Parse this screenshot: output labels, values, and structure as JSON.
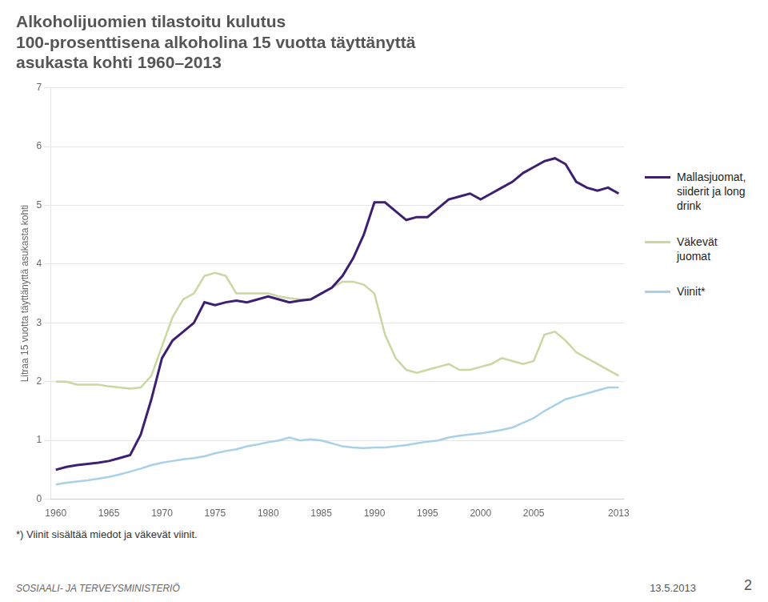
{
  "chart_data": {
    "type": "line",
    "title": "Alkoholijuomien tilastoitu kulutus\n100-prosenttisena alkoholina 15 vuotta täyttänyttä\nasukasta kohti 1960–2013",
    "ylabel": "Litraa 15 vuotta täyttänyttä asukasta kohti",
    "annotations": [
      "*) Viinit sisältää miedot ja väkevät viinit.",
      "SOSIAALI- JA TERVEYSMINISTERIÖ",
      "13.5.2013",
      "2"
    ],
    "x": [
      1960,
      1961,
      1962,
      1963,
      1964,
      1965,
      1966,
      1967,
      1968,
      1969,
      1970,
      1971,
      1972,
      1973,
      1974,
      1975,
      1976,
      1977,
      1978,
      1979,
      1980,
      1981,
      1982,
      1983,
      1984,
      1985,
      1986,
      1987,
      1988,
      1989,
      1990,
      1991,
      1992,
      1993,
      1994,
      1995,
      1996,
      1997,
      1998,
      1999,
      2000,
      2001,
      2002,
      2003,
      2004,
      2005,
      2006,
      2007,
      2008,
      2009,
      2010,
      2011,
      2012,
      2013
    ],
    "series": [
      {
        "name": "Mallasjuomat,\nsiiderit ja long\ndrink",
        "color": "#3d2070",
        "values": [
          0.5,
          0.55,
          0.58,
          0.6,
          0.62,
          0.65,
          0.7,
          0.75,
          1.1,
          1.7,
          2.4,
          2.7,
          2.85,
          3.0,
          3.35,
          3.3,
          3.35,
          3.38,
          3.35,
          3.4,
          3.45,
          3.4,
          3.35,
          3.38,
          3.4,
          3.5,
          3.6,
          3.8,
          4.1,
          4.5,
          5.05,
          5.05,
          4.9,
          4.75,
          4.8,
          4.8,
          4.95,
          5.1,
          5.15,
          5.2,
          5.1,
          5.2,
          5.3,
          5.4,
          5.55,
          5.65,
          5.75,
          5.8,
          5.7,
          5.4,
          5.3,
          5.25,
          5.3,
          5.2
        ]
      },
      {
        "name": "Väkevät\njuomat",
        "color": "#c8d8a0",
        "values": [
          2.0,
          2.0,
          1.95,
          1.95,
          1.95,
          1.92,
          1.9,
          1.88,
          1.9,
          2.1,
          2.6,
          3.1,
          3.4,
          3.5,
          3.8,
          3.85,
          3.8,
          3.5,
          3.5,
          3.5,
          3.5,
          3.45,
          3.42,
          3.4,
          3.4,
          3.5,
          3.6,
          3.7,
          3.7,
          3.65,
          3.5,
          2.8,
          2.4,
          2.2,
          2.15,
          2.2,
          2.25,
          2.3,
          2.2,
          2.2,
          2.25,
          2.3,
          2.4,
          2.35,
          2.3,
          2.35,
          2.8,
          2.85,
          2.7,
          2.5,
          2.4,
          2.3,
          2.2,
          2.1
        ]
      },
      {
        "name": "Viinit*",
        "color": "#a8d0e8",
        "values": [
          0.25,
          0.28,
          0.3,
          0.32,
          0.35,
          0.38,
          0.42,
          0.47,
          0.52,
          0.58,
          0.62,
          0.65,
          0.68,
          0.7,
          0.73,
          0.78,
          0.82,
          0.85,
          0.9,
          0.93,
          0.97,
          1.0,
          1.05,
          1.0,
          1.02,
          1.0,
          0.95,
          0.9,
          0.88,
          0.87,
          0.88,
          0.88,
          0.9,
          0.92,
          0.95,
          0.98,
          1.0,
          1.05,
          1.08,
          1.1,
          1.12,
          1.15,
          1.18,
          1.22,
          1.3,
          1.38,
          1.5,
          1.6,
          1.7,
          1.75,
          1.8,
          1.85,
          1.9,
          1.9
        ]
      }
    ],
    "xlim": [
      1959.5,
      2013.5
    ],
    "xticks": [
      1960,
      1965,
      1970,
      1975,
      1980,
      1985,
      1990,
      1995,
      2000,
      2005,
      2013
    ],
    "ylim": [
      0,
      7
    ],
    "yticks": [
      0,
      1,
      2,
      3,
      4,
      5,
      6,
      7
    ],
    "grid": "y",
    "legend": "right"
  }
}
